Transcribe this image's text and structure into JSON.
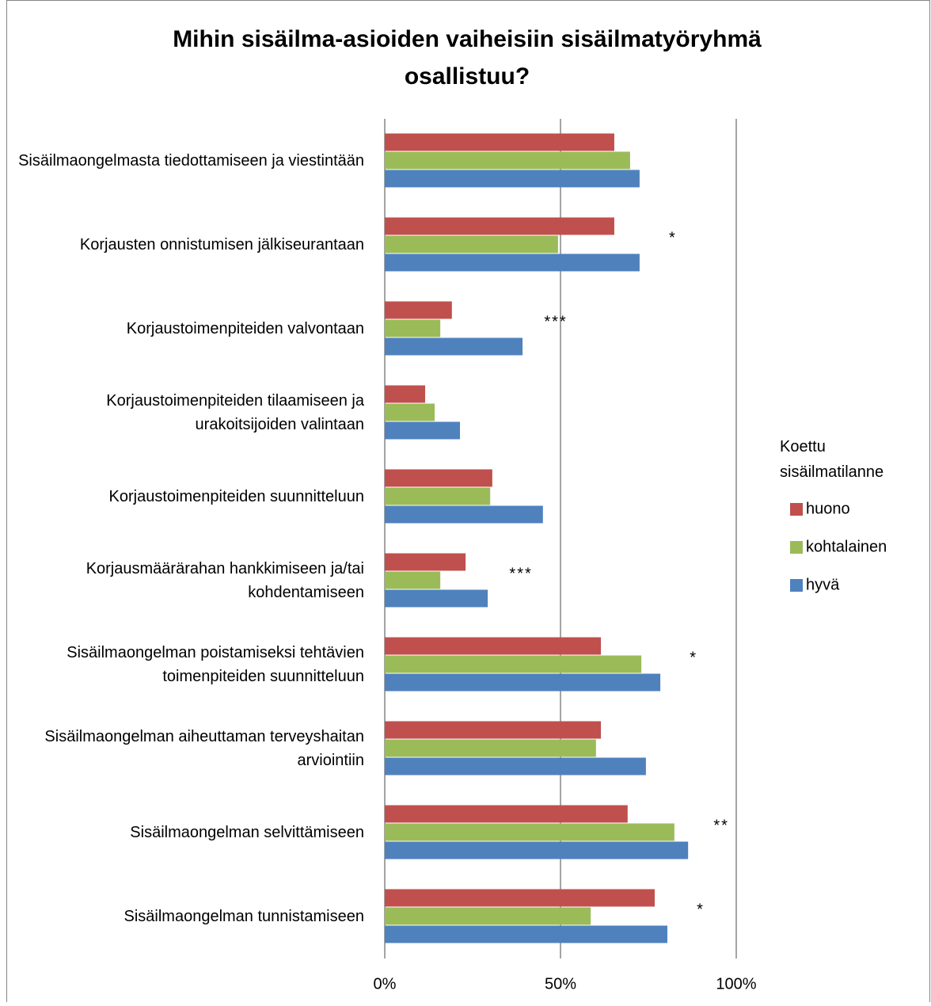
{
  "chart_data": {
    "type": "hbar",
    "title": "Mihin sisäilma-asioiden vaiheisiin sisäilmatyöryhmä osallistuu?",
    "categories": [
      "Sisäilmaongelmasta tiedottamiseen ja viestintään",
      "Korjausten onnistumisen jälkiseurantaan",
      "Korjaustoimenpiteiden valvontaan",
      "Korjaustoimenpiteiden tilaamiseen ja urakoitsijoiden valintaan",
      "Korjaustoimenpiteiden suunnitteluun",
      "Korjausmäärärahan hankkimiseen ja/tai kohdentamiseen",
      "Sisäilmaongelman poistamiseksi tehtävien toimenpiteiden suunnitteluun",
      "Sisäilmaongelman aiheuttaman terveyshaitan arviointiin",
      "Sisäilmaongelman selvittämiseen",
      "Sisäilmaongelman tunnistamiseen"
    ],
    "series": [
      {
        "name": "huono",
        "color": "#c0504d",
        "values": [
          65.3,
          65.3,
          19.1,
          11.5,
          30.6,
          23.0,
          61.5,
          61.5,
          69.1,
          76.8
        ]
      },
      {
        "name": "kohtalainen",
        "color": "#9bbb59",
        "values": [
          69.8,
          49.3,
          15.8,
          14.2,
          30.0,
          15.8,
          73.0,
          60.1,
          82.4,
          58.6
        ]
      },
      {
        "name": "hyvä",
        "color": "#4f81bd",
        "values": [
          72.5,
          72.5,
          39.2,
          21.4,
          45.0,
          29.3,
          78.4,
          74.3,
          86.3,
          80.4
        ]
      }
    ],
    "annotations": [
      null,
      "*",
      "***",
      null,
      null,
      "***",
      "*",
      null,
      "**",
      "*"
    ],
    "legend_title": "Koettu sisäilmatilanne",
    "xlim": [
      0,
      100
    ],
    "xticks": [
      {
        "value": 0,
        "label": "0%"
      },
      {
        "value": 50,
        "label": "50%"
      },
      {
        "value": 100,
        "label": "100%"
      }
    ],
    "grid": true
  }
}
